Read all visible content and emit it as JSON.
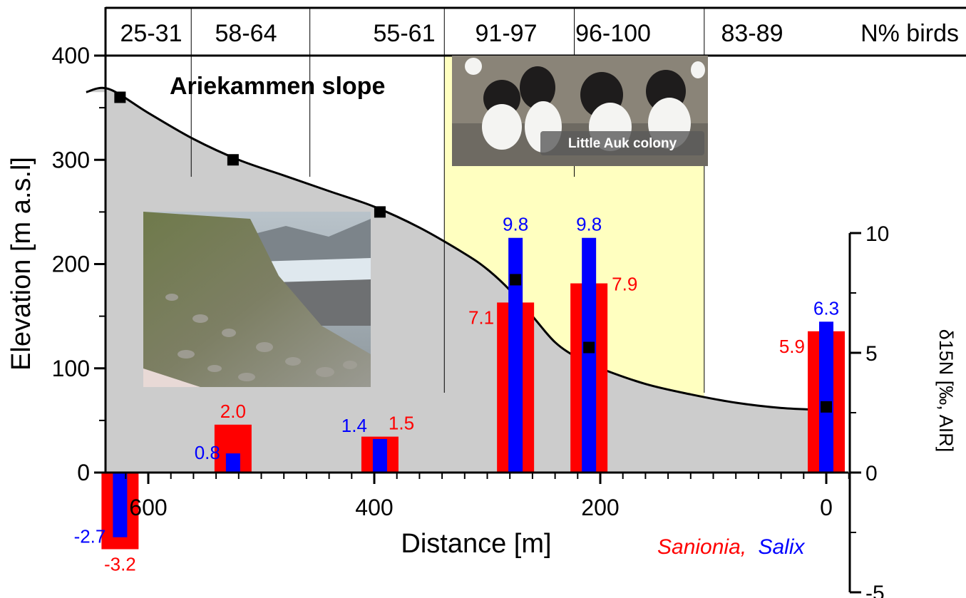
{
  "chart_data": {
    "type": "bar",
    "title": "Ariekammen slope",
    "xlabel": "Distance [m]",
    "ylabel": "Elevation [m a.s.l]",
    "y2label": "δ15N [‰, AIR]",
    "x_reversed": true,
    "xlim": [
      640,
      -40
    ],
    "ylim": [
      0,
      400
    ],
    "y2lim": [
      -5,
      10
    ],
    "x_ticks": [
      600,
      400,
      200,
      0
    ],
    "y_ticks": [
      0,
      100,
      200,
      300,
      400
    ],
    "y2_ticks": [
      -5,
      0,
      5,
      10
    ],
    "grid": false,
    "legend": "bottom-right",
    "colors": {
      "sanionia": "#ff0000",
      "salix": "#0000ff",
      "terrain": "#cccccc",
      "colony_zone": "#ffffc0"
    },
    "elevation_profile": {
      "x": [
        655,
        635,
        600,
        560,
        520,
        480,
        440,
        400,
        360,
        320,
        300,
        280,
        260,
        240,
        220,
        200,
        160,
        120,
        80,
        40,
        0
      ],
      "y": [
        365,
        368,
        345,
        320,
        300,
        285,
        270,
        255,
        235,
        210,
        195,
        175,
        150,
        125,
        110,
        100,
        85,
        75,
        67,
        62,
        60
      ]
    },
    "sample_points": {
      "x": [
        625,
        525,
        395,
        275,
        210,
        0
      ],
      "y": [
        360,
        300,
        250,
        185,
        120,
        63
      ]
    },
    "bird_percent_header": {
      "label": "N% birds",
      "zones": [
        "25-31",
        "58-64",
        "55-61",
        "91-97",
        "96-100",
        "83-89"
      ]
    },
    "zone_bounds": [
      562,
      457,
      338,
      223,
      108
    ],
    "colony_zone": [
      338,
      108
    ],
    "series": [
      {
        "name": "Sanionia",
        "x": [
          625,
          525,
          395,
          275,
          210,
          0
        ],
        "values": [
          -3.2,
          2.0,
          1.5,
          7.1,
          7.9,
          5.9
        ]
      },
      {
        "name": "Salix",
        "x": [
          625,
          525,
          395,
          275,
          210,
          0
        ],
        "values": [
          -2.7,
          0.8,
          1.4,
          9.8,
          9.8,
          6.3
        ]
      }
    ],
    "legend_labels": {
      "sanionia": "Sanionia,",
      "salix": "Salix"
    },
    "photo_caption": "Little Auk colony"
  }
}
